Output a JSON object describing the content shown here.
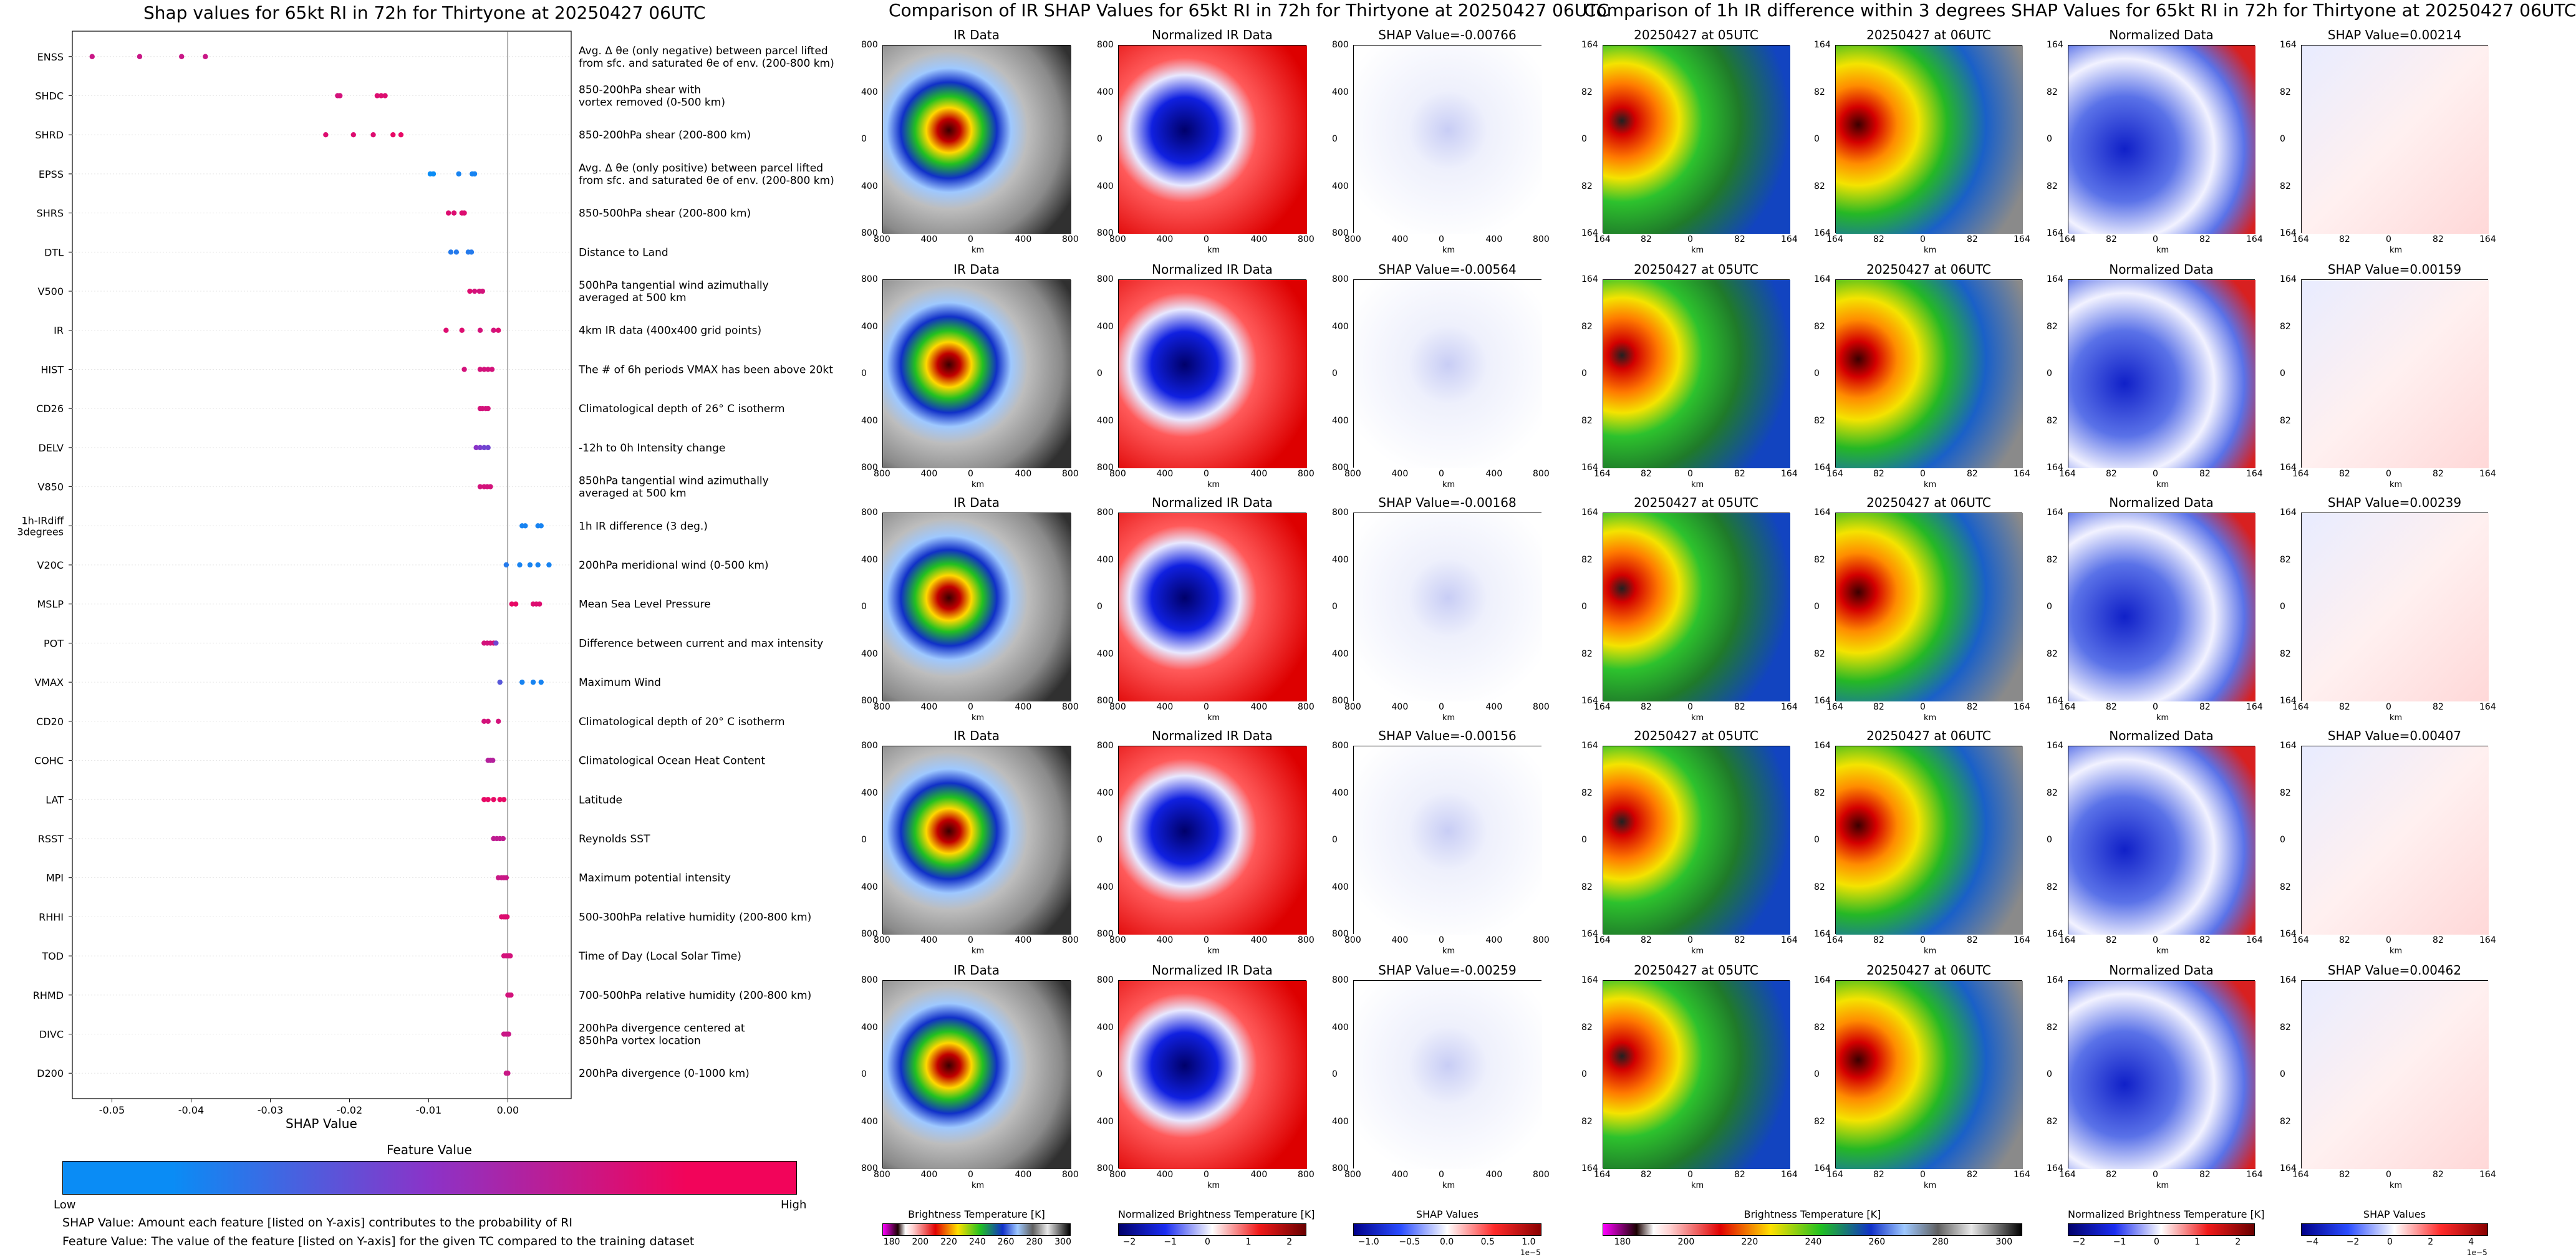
{
  "chart_data": [
    {
      "type": "scatter",
      "title": "Shap values for 65kt RI in 72h for Thirtyone at 20250427 06UTC",
      "xlabel": "SHAP Value",
      "xlim": [
        -0.055,
        0.008
      ],
      "xticks": [
        "-0.05",
        "-0.04",
        "-0.03",
        "-0.02",
        "-0.01",
        "0.00"
      ],
      "features": [
        {
          "name": "ENSS",
          "desc": "Avg. Δ θe (only negative) between parcel lifted\nfrom sfc. and saturated θe of env. (200-800 km)",
          "points": [
            [
              -0.0525,
              0.8
            ],
            [
              -0.0465,
              0.8
            ],
            [
              -0.0412,
              0.8
            ],
            [
              -0.0382,
              0.8
            ]
          ]
        },
        {
          "name": "SHDC",
          "desc": "850-200hPa shear with\nvortex removed (0-500 km)",
          "points": [
            [
              -0.0215,
              0.85
            ],
            [
              -0.0212,
              0.85
            ],
            [
              -0.0165,
              0.9
            ],
            [
              -0.016,
              0.9
            ],
            [
              -0.0155,
              0.9
            ]
          ]
        },
        {
          "name": "SHRD",
          "desc": "850-200hPa shear (200-800 km)",
          "points": [
            [
              -0.023,
              0.9
            ],
            [
              -0.0195,
              0.9
            ],
            [
              -0.017,
              0.9
            ],
            [
              -0.0145,
              0.95
            ],
            [
              -0.0135,
              0.95
            ]
          ]
        },
        {
          "name": "EPSS",
          "desc": "Avg. Δ θe (only positive) between parcel lifted\nfrom sfc. and saturated θe of env. (200-800 km)",
          "points": [
            [
              -0.0098,
              0.0
            ],
            [
              -0.0094,
              0.0
            ],
            [
              -0.0062,
              0.05
            ],
            [
              -0.0045,
              0.05
            ],
            [
              -0.0042,
              0.05
            ]
          ]
        },
        {
          "name": "SHRS",
          "desc": "850-500hPa shear (200-800 km)",
          "points": [
            [
              -0.0075,
              0.9
            ],
            [
              -0.0068,
              0.9
            ],
            [
              -0.0058,
              0.9
            ],
            [
              -0.0055,
              0.9
            ]
          ]
        },
        {
          "name": "DTL",
          "desc": "Distance to Land",
          "points": [
            [
              -0.0072,
              0.1
            ],
            [
              -0.0065,
              0.1
            ],
            [
              -0.005,
              0.1
            ],
            [
              -0.0046,
              0.1
            ]
          ]
        },
        {
          "name": "V500",
          "desc": "500hPa tangential wind azimuthally\naveraged at 500 km",
          "points": [
            [
              -0.0048,
              0.9
            ],
            [
              -0.0042,
              0.85
            ],
            [
              -0.0036,
              0.85
            ],
            [
              -0.0032,
              0.85
            ]
          ]
        },
        {
          "name": "IR",
          "desc": "4km IR data (400x400 grid points)",
          "points": [
            [
              -0.0078,
              0.9
            ],
            [
              -0.0058,
              0.9
            ],
            [
              -0.0035,
              0.85
            ],
            [
              -0.0018,
              0.85
            ],
            [
              -0.0012,
              0.9
            ]
          ]
        },
        {
          "name": "HIST",
          "desc": "The # of 6h periods VMAX has been above 20kt",
          "points": [
            [
              -0.0055,
              0.85
            ],
            [
              -0.0035,
              0.85
            ],
            [
              -0.003,
              0.85
            ],
            [
              -0.0025,
              0.85
            ],
            [
              -0.002,
              0.85
            ]
          ]
        },
        {
          "name": "CD26",
          "desc": "Climatological depth of 26° C isotherm",
          "points": [
            [
              -0.0035,
              0.85
            ],
            [
              -0.0032,
              0.85
            ],
            [
              -0.0028,
              0.85
            ],
            [
              -0.0025,
              0.85
            ]
          ]
        },
        {
          "name": "DELV",
          "desc": "-12h to 0h Intensity change",
          "points": [
            [
              -0.004,
              0.5
            ],
            [
              -0.0035,
              0.45
            ],
            [
              -0.003,
              0.4
            ],
            [
              -0.0025,
              0.4
            ]
          ]
        },
        {
          "name": "V850",
          "desc": "850hPa tangential wind azimuthally\naveraged at 500 km",
          "points": [
            [
              -0.0035,
              0.85
            ],
            [
              -0.003,
              0.85
            ],
            [
              -0.0026,
              0.85
            ],
            [
              -0.0022,
              0.85
            ]
          ]
        },
        {
          "name": "1h-IRdiff\n3degrees",
          "desc": "1h IR difference (3 deg.)",
          "points": [
            [
              0.0018,
              0.05
            ],
            [
              0.0022,
              0.05
            ],
            [
              0.0038,
              0.05
            ],
            [
              0.0042,
              0.05
            ]
          ]
        },
        {
          "name": "V20C",
          "desc": "200hPa meridional wind (0-500 km)",
          "points": [
            [
              -0.0002,
              0.1
            ],
            [
              0.0015,
              0.05
            ],
            [
              0.0028,
              0.05
            ],
            [
              0.0038,
              0.05
            ],
            [
              0.0052,
              0.05
            ]
          ]
        },
        {
          "name": "MSLP",
          "desc": "Mean Sea Level Pressure",
          "points": [
            [
              0.0005,
              0.95
            ],
            [
              0.001,
              0.95
            ],
            [
              0.0032,
              0.9
            ],
            [
              0.0036,
              0.9
            ],
            [
              0.004,
              0.9
            ]
          ]
        },
        {
          "name": "POT",
          "desc": "Difference between current and max intensity",
          "points": [
            [
              -0.003,
              0.85
            ],
            [
              -0.0026,
              0.85
            ],
            [
              -0.0022,
              0.85
            ],
            [
              -0.0018,
              0.85
            ],
            [
              -0.0015,
              0.4
            ]
          ]
        },
        {
          "name": "VMAX",
          "desc": "Maximum Wind",
          "points": [
            [
              -0.001,
              0.3
            ],
            [
              0.0018,
              0.05
            ],
            [
              0.0032,
              0.05
            ],
            [
              0.0042,
              0.05
            ]
          ]
        },
        {
          "name": "CD20",
          "desc": "Climatological depth of 20° C isotherm",
          "points": [
            [
              -0.003,
              0.85
            ],
            [
              -0.0025,
              0.85
            ],
            [
              -0.0012,
              0.85
            ]
          ]
        },
        {
          "name": "COHC",
          "desc": "Climatological Ocean Heat Content",
          "points": [
            [
              -0.0025,
              0.7
            ],
            [
              -0.0022,
              0.7
            ],
            [
              -0.0019,
              0.7
            ]
          ]
        },
        {
          "name": "LAT",
          "desc": "Latitude",
          "points": [
            [
              -0.003,
              0.95
            ],
            [
              -0.0025,
              0.95
            ],
            [
              -0.0018,
              0.95
            ],
            [
              -0.001,
              0.95
            ],
            [
              -0.0005,
              0.95
            ]
          ]
        },
        {
          "name": "RSST",
          "desc": "Reynolds SST",
          "points": [
            [
              -0.0018,
              0.75
            ],
            [
              -0.0014,
              0.75
            ],
            [
              -0.001,
              0.75
            ],
            [
              -0.0006,
              0.75
            ]
          ]
        },
        {
          "name": "MPI",
          "desc": "Maximum potential intensity",
          "points": [
            [
              -0.0012,
              0.8
            ],
            [
              -0.0008,
              0.8
            ],
            [
              -0.0005,
              0.8
            ],
            [
              -0.0002,
              0.8
            ]
          ]
        },
        {
          "name": "RHHI",
          "desc": "500-300hPa relative humidity (200-800 km)",
          "points": [
            [
              -0.0008,
              0.9
            ],
            [
              -0.0005,
              0.9
            ],
            [
              -0.0003,
              0.9
            ],
            [
              -0.0001,
              0.9
            ]
          ]
        },
        {
          "name": "TOD",
          "desc": "Time of Day (Local Solar Time)",
          "points": [
            [
              -0.0005,
              0.85
            ],
            [
              -0.0002,
              0.85
            ],
            [
              0.0001,
              0.85
            ],
            [
              0.0003,
              0.85
            ]
          ]
        },
        {
          "name": "RHMD",
          "desc": "700-500hPa relative humidity (200-800 km)",
          "points": [
            [
              0.0,
              0.85
            ],
            [
              0.0002,
              0.85
            ],
            [
              0.0004,
              0.85
            ]
          ]
        },
        {
          "name": "DIVC",
          "desc": "200hPa divergence centered at\n850hPa vortex location",
          "points": [
            [
              -0.0005,
              0.8
            ],
            [
              -0.0002,
              0.8
            ],
            [
              0.0001,
              0.8
            ]
          ]
        },
        {
          "name": "D200",
          "desc": "200hPa divergence (0-1000 km)",
          "points": [
            [
              -0.0002,
              0.8
            ],
            [
              0.0,
              0.8
            ]
          ]
        }
      ],
      "legend_colorbar": {
        "label": "Feature Value",
        "low": "Low",
        "high": "High",
        "colors": [
          "#0a8cf5",
          "#8b33c8",
          "#f2045a"
        ]
      }
    }
  ],
  "notes": {
    "line1": "SHAP Value: Amount each feature [listed on Y-axis] contributes to the probability of RI",
    "line2": "Feature Value: The value of the feature [listed on Y-axis] for the given TC compared to the training dataset"
  },
  "ir_section": {
    "title": "Comparison of IR SHAP Values for 65kt RI in 72h for Thirtyone at 20250427 06UTC",
    "col_titles": [
      "IR Data",
      "Normalized IR Data"
    ],
    "shap_titles": [
      "SHAP Value=-0.00766",
      "SHAP Value=-0.00564",
      "SHAP Value=-0.00168",
      "SHAP Value=-0.00156",
      "SHAP Value=-0.00259"
    ],
    "ticks": [
      "800",
      "400",
      "0",
      "400",
      "800"
    ],
    "axis_unit": "km",
    "colorbars": [
      {
        "label": "Brightness Temperature [K]",
        "ticks": [
          "180",
          "200",
          "220",
          "240",
          "260",
          "280",
          "300"
        ],
        "exponent": ""
      },
      {
        "label": "Normalized Brightness Temperature [K]",
        "ticks": [
          "−2",
          "−1",
          "0",
          "1",
          "2"
        ],
        "exponent": ""
      },
      {
        "label": "SHAP Values",
        "ticks": [
          "−1.0",
          "−0.5",
          "0.0",
          "0.5",
          "1.0"
        ],
        "exponent": "1e−5"
      }
    ]
  },
  "diff_section": {
    "title": "Comparison of 1h IR difference within 3 degrees SHAP Values for 65kt RI in 72h for Thirtyone at 20250427 06UTC",
    "col_titles": [
      "20250427 at 05UTC",
      "20250427 at 06UTC",
      "Normalized Data"
    ],
    "shap_titles": [
      "SHAP Value=0.00214",
      "SHAP Value=0.00159",
      "SHAP Value=0.00239",
      "SHAP Value=0.00407",
      "SHAP Value=0.00462"
    ],
    "ticks": [
      "164",
      "82",
      "0",
      "82",
      "164"
    ],
    "axis_unit": "km",
    "colorbars": [
      {
        "label": "Brightness Temperature [K]",
        "ticks": [
          "180",
          "200",
          "220",
          "240",
          "260",
          "280",
          "300"
        ],
        "exponent": ""
      },
      {
        "label": "Normalized Brightness Temperature [K]",
        "ticks": [
          "−2",
          "−1",
          "0",
          "1",
          "2"
        ],
        "exponent": ""
      },
      {
        "label": "SHAP Values",
        "ticks": [
          "−4",
          "−2",
          "0",
          "2",
          "4"
        ],
        "exponent": "1e−5"
      }
    ]
  }
}
